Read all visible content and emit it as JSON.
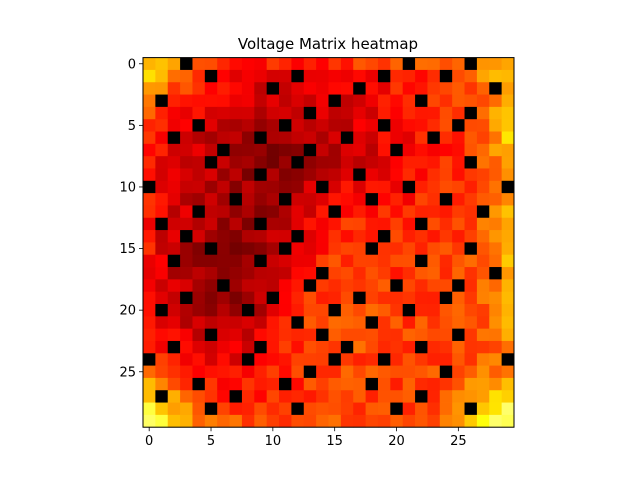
{
  "chart_data": {
    "type": "heatmap",
    "title": "Voltage Matrix heatmap",
    "xlabel": "",
    "ylabel": "",
    "colormap": "hot",
    "rows": 30,
    "cols": 30,
    "x_ticks": [
      "0",
      "5",
      "10",
      "15",
      "20",
      "25"
    ],
    "y_ticks": [
      "0",
      "5",
      "10",
      "15",
      "20",
      "25"
    ],
    "xlim": [
      -0.5,
      29.5
    ],
    "ylim": [
      29.5,
      -0.5
    ],
    "y_inverted": true,
    "value_range": [
      0,
      1
    ],
    "dark_cells": [
      [
        0,
        3
      ],
      [
        0,
        21
      ],
      [
        0,
        26
      ],
      [
        1,
        5
      ],
      [
        1,
        12
      ],
      [
        1,
        19
      ],
      [
        1,
        24
      ],
      [
        2,
        10
      ],
      [
        2,
        17
      ],
      [
        2,
        28
      ],
      [
        3,
        1
      ],
      [
        3,
        15
      ],
      [
        3,
        22
      ],
      [
        4,
        13
      ],
      [
        4,
        26
      ],
      [
        5,
        4
      ],
      [
        5,
        11
      ],
      [
        5,
        19
      ],
      [
        5,
        25
      ],
      [
        6,
        2
      ],
      [
        6,
        9
      ],
      [
        6,
        16
      ],
      [
        6,
        23
      ],
      [
        7,
        6
      ],
      [
        7,
        13
      ],
      [
        7,
        20
      ],
      [
        8,
        5
      ],
      [
        8,
        12
      ],
      [
        8,
        26
      ],
      [
        9,
        9
      ],
      [
        9,
        17
      ],
      [
        10,
        0
      ],
      [
        10,
        14
      ],
      [
        10,
        21
      ],
      [
        10,
        29
      ],
      [
        11,
        7
      ],
      [
        11,
        11
      ],
      [
        11,
        18
      ],
      [
        11,
        24
      ],
      [
        12,
        4
      ],
      [
        12,
        15
      ],
      [
        12,
        27
      ],
      [
        13,
        1
      ],
      [
        13,
        9
      ],
      [
        13,
        22
      ],
      [
        14,
        3
      ],
      [
        14,
        12
      ],
      [
        14,
        19
      ],
      [
        15,
        5
      ],
      [
        15,
        11
      ],
      [
        15,
        18
      ],
      [
        15,
        26
      ],
      [
        16,
        2
      ],
      [
        16,
        9
      ],
      [
        16,
        22
      ],
      [
        17,
        14
      ],
      [
        17,
        28
      ],
      [
        18,
        6
      ],
      [
        18,
        13
      ],
      [
        18,
        20
      ],
      [
        18,
        25
      ],
      [
        19,
        3
      ],
      [
        19,
        10
      ],
      [
        19,
        17
      ],
      [
        19,
        24
      ],
      [
        20,
        1
      ],
      [
        20,
        8
      ],
      [
        20,
        15
      ],
      [
        20,
        21
      ],
      [
        21,
        12
      ],
      [
        21,
        18
      ],
      [
        22,
        5
      ],
      [
        22,
        14
      ],
      [
        22,
        25
      ],
      [
        23,
        2
      ],
      [
        23,
        9
      ],
      [
        23,
        16
      ],
      [
        23,
        22
      ],
      [
        24,
        0
      ],
      [
        24,
        8
      ],
      [
        24,
        15
      ],
      [
        24,
        19
      ],
      [
        24,
        29
      ],
      [
        25,
        13
      ],
      [
        25,
        24
      ],
      [
        26,
        4
      ],
      [
        26,
        11
      ],
      [
        26,
        18
      ],
      [
        27,
        1
      ],
      [
        27,
        7
      ],
      [
        27,
        22
      ],
      [
        28,
        5
      ],
      [
        28,
        12
      ],
      [
        28,
        20
      ],
      [
        28,
        26
      ]
    ]
  }
}
